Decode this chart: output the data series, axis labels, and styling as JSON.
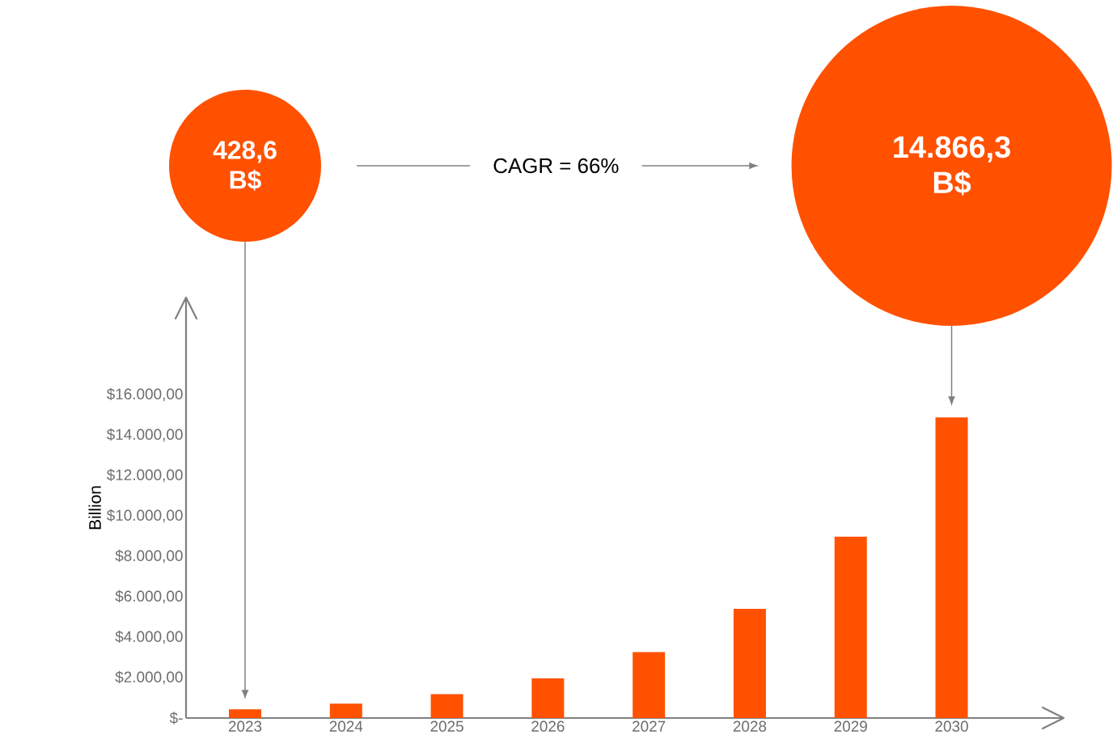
{
  "chart_data": {
    "type": "bar",
    "ylabel": "Billion",
    "categories": [
      "2023",
      "2024",
      "2025",
      "2026",
      "2027",
      "2028",
      "2029",
      "2030"
    ],
    "values": [
      428.6,
      710,
      1180,
      1960,
      3260,
      5400,
      8970,
      14866.3
    ],
    "color": "#ff5100",
    "ylim": [
      0,
      20800
    ],
    "yticks": [
      {
        "value": 0,
        "label": "$-"
      },
      {
        "value": 2000,
        "label": "$2.000,00"
      },
      {
        "value": 4000,
        "label": "$4.000,00"
      },
      {
        "value": 6000,
        "label": "$6.000,00"
      },
      {
        "value": 8000,
        "label": "$8.000,00"
      },
      {
        "value": 10000,
        "label": "$10.000,00"
      },
      {
        "value": 12000,
        "label": "$12.000,00"
      },
      {
        "value": 14000,
        "label": "$14.000,00"
      },
      {
        "value": 16000,
        "label": "$16.000,00"
      }
    ],
    "annotations": [
      "428,6 B$",
      "CAGR = 66%",
      "14.866,3 B$"
    ]
  }
}
